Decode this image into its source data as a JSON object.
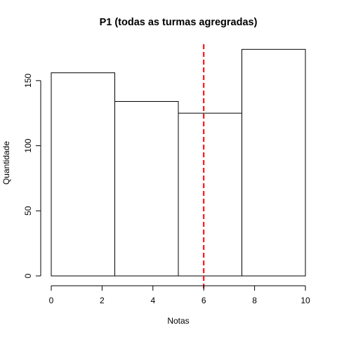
{
  "chart_data": {
    "type": "bar",
    "title": "P1 (todas as turmas agregradas)",
    "xlabel": "Notas",
    "ylabel": "Quantidade",
    "bins": [
      {
        "x0": 0,
        "x1": 2.5,
        "count": 156
      },
      {
        "x0": 2.5,
        "x1": 5,
        "count": 134
      },
      {
        "x0": 5,
        "x1": 7.5,
        "count": 125
      },
      {
        "x0": 7.5,
        "x1": 10,
        "count": 174
      }
    ],
    "xlim": [
      0,
      10
    ],
    "ylim": [
      0,
      178
    ],
    "x_ticks": [
      "0",
      "2",
      "4",
      "6",
      "8",
      "10"
    ],
    "y_ticks": [
      "0",
      "50",
      "100",
      "150"
    ],
    "reference_line": {
      "x": 6,
      "color": "#ff0000",
      "style": "dashed"
    },
    "bar_fill": "#ffffff",
    "bar_stroke": "#000000",
    "grid": false,
    "legend": "none"
  }
}
